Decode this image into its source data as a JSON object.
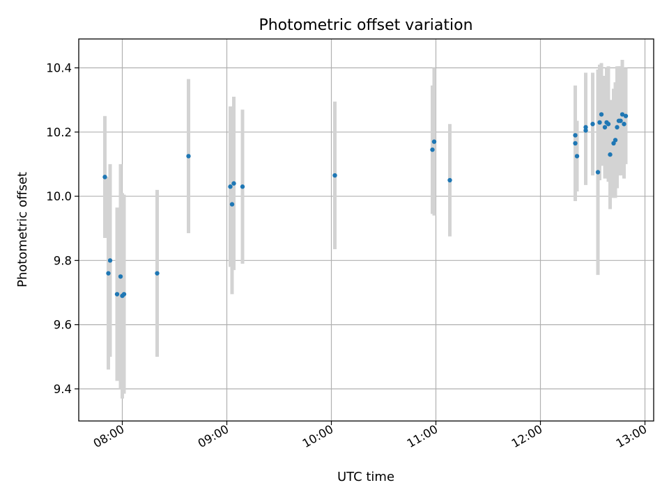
{
  "chart_data": {
    "type": "scatter",
    "title": "Photometric offset variation",
    "xlabel": "UTC time",
    "ylabel": "Photometric offset",
    "xlim": [
      "07:35",
      "13:05"
    ],
    "ylim": [
      9.3,
      10.49
    ],
    "xticks": [
      "08:00",
      "09:00",
      "10:00",
      "11:00",
      "12:00",
      "13:00"
    ],
    "yticks": [
      9.4,
      9.6,
      9.8,
      10.0,
      10.2,
      10.4
    ],
    "grid": true,
    "colors": {
      "point": "#1f77b4",
      "errorbar": "#d3d3d3"
    },
    "points": [
      {
        "t": "07:50",
        "y": 10.06,
        "yerr": 0.19
      },
      {
        "t": "07:52",
        "y": 9.76,
        "yerr": 0.3
      },
      {
        "t": "07:53",
        "y": 9.8,
        "yerr": 0.3
      },
      {
        "t": "07:57",
        "y": 9.695,
        "yerr": 0.27
      },
      {
        "t": "07:59",
        "y": 9.75,
        "yerr": 0.35
      },
      {
        "t": "08:00",
        "y": 9.69,
        "yerr": 0.32
      },
      {
        "t": "08:01",
        "y": 9.695,
        "yerr": 0.31
      },
      {
        "t": "08:20",
        "y": 9.76,
        "yerr": 0.26
      },
      {
        "t": "08:38",
        "y": 10.125,
        "yerr": 0.24
      },
      {
        "t": "09:02",
        "y": 10.03,
        "yerr": 0.25
      },
      {
        "t": "09:03",
        "y": 9.975,
        "yerr": 0.28
      },
      {
        "t": "09:04",
        "y": 10.04,
        "yerr": 0.27
      },
      {
        "t": "09:09",
        "y": 10.03,
        "yerr": 0.24
      },
      {
        "t": "10:02",
        "y": 10.065,
        "yerr": 0.23
      },
      {
        "t": "10:58",
        "y": 10.145,
        "yerr": 0.2
      },
      {
        "t": "10:59",
        "y": 10.17,
        "yerr": 0.23
      },
      {
        "t": "11:08",
        "y": 10.05,
        "yerr": 0.175
      },
      {
        "t": "12:20",
        "y": 10.19,
        "yerr": 0.15
      },
      {
        "t": "12:20",
        "y": 10.165,
        "yerr": 0.18
      },
      {
        "t": "12:21",
        "y": 10.125,
        "yerr": 0.11
      },
      {
        "t": "12:26",
        "y": 10.215,
        "yerr": 0.17
      },
      {
        "t": "12:26",
        "y": 10.205,
        "yerr": 0.17
      },
      {
        "t": "12:30",
        "y": 10.225,
        "yerr": 0.16
      },
      {
        "t": "12:33",
        "y": 10.075,
        "yerr": 0.32
      },
      {
        "t": "12:34",
        "y": 10.23,
        "yerr": 0.18
      },
      {
        "t": "12:35",
        "y": 10.255,
        "yerr": 0.16
      },
      {
        "t": "12:37",
        "y": 10.215,
        "yerr": 0.16
      },
      {
        "t": "12:38",
        "y": 10.23,
        "yerr": 0.17
      },
      {
        "t": "12:39",
        "y": 10.225,
        "yerr": 0.18
      },
      {
        "t": "12:40",
        "y": 10.13,
        "yerr": 0.17
      },
      {
        "t": "12:42",
        "y": 10.165,
        "yerr": 0.17
      },
      {
        "t": "12:43",
        "y": 10.175,
        "yerr": 0.18
      },
      {
        "t": "12:44",
        "y": 10.215,
        "yerr": 0.19
      },
      {
        "t": "12:45",
        "y": 10.235,
        "yerr": 0.17
      },
      {
        "t": "12:46",
        "y": 10.235,
        "yerr": 0.17
      },
      {
        "t": "12:47",
        "y": 10.255,
        "yerr": 0.17
      },
      {
        "t": "12:48",
        "y": 10.225,
        "yerr": 0.17
      },
      {
        "t": "12:49",
        "y": 10.25,
        "yerr": 0.15
      }
    ]
  }
}
